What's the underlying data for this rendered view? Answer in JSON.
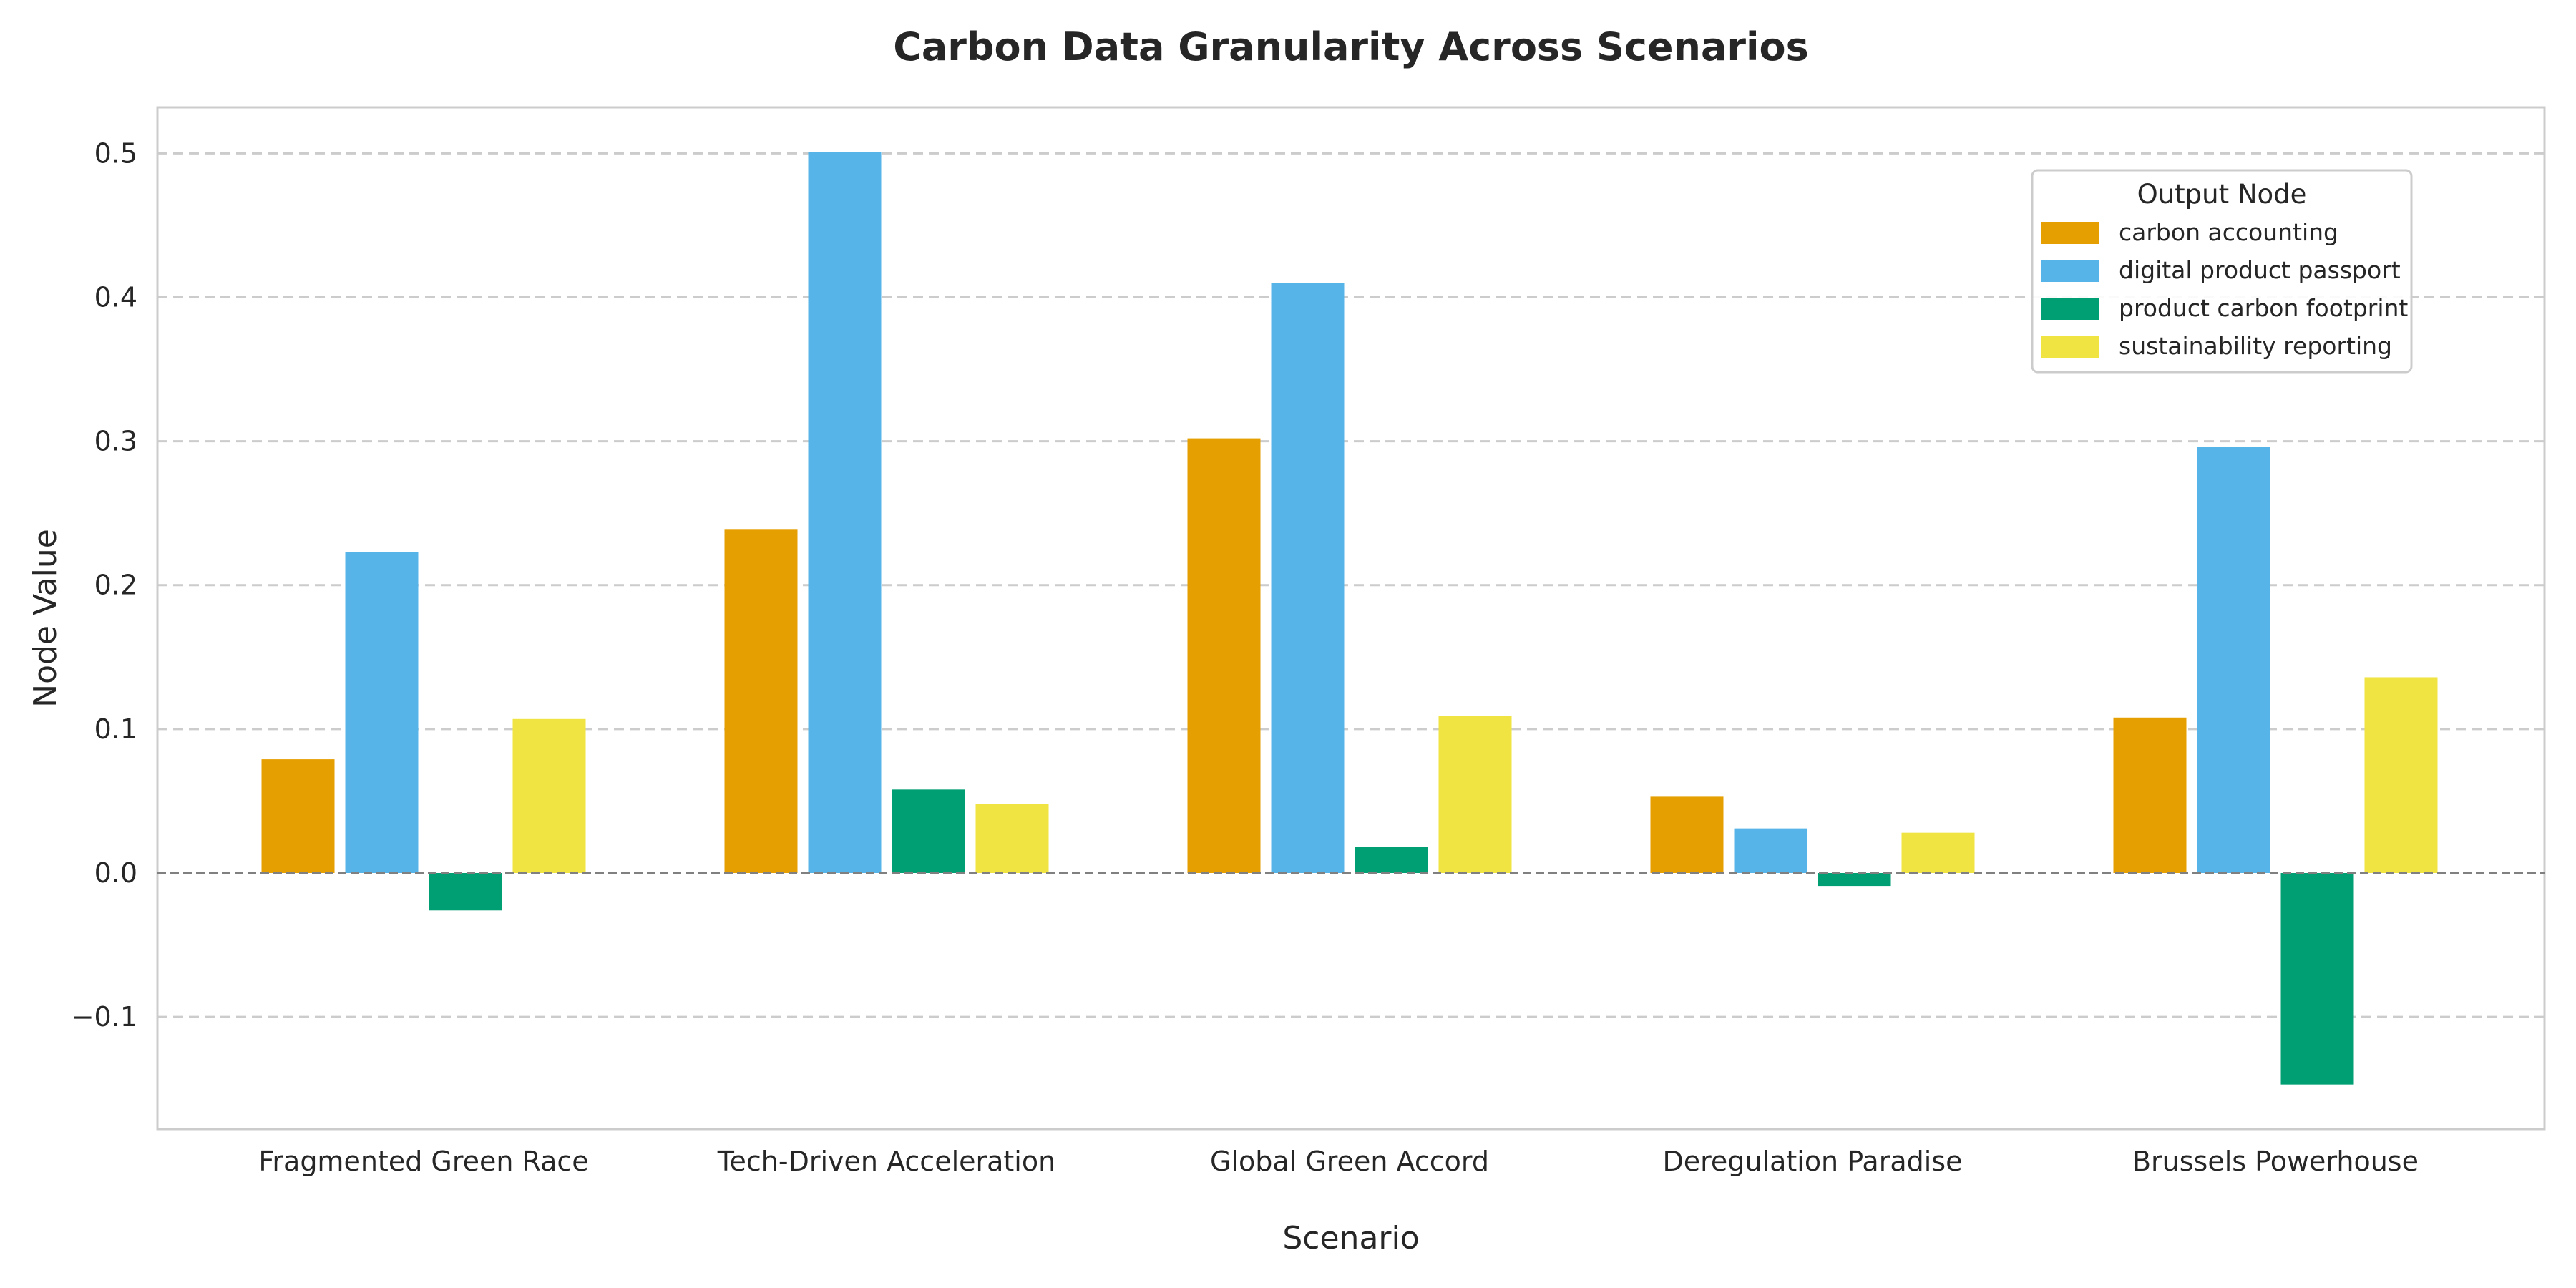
{
  "chart_data": {
    "type": "bar",
    "title": "Carbon Data Granularity Across Scenarios",
    "xlabel": "Scenario",
    "ylabel": "Node Value",
    "categories": [
      "Fragmented Green Race",
      "Tech-Driven Acceleration",
      "Global Green Accord",
      "Deregulation Paradise",
      "Brussels Powerhouse"
    ],
    "series": [
      {
        "name": "carbon accounting",
        "color": "#E69F00",
        "values": [
          0.079,
          0.239,
          0.302,
          0.053,
          0.108
        ]
      },
      {
        "name": "digital product passport",
        "color": "#56B4E9",
        "values": [
          0.223,
          0.501,
          0.41,
          0.031,
          0.296
        ]
      },
      {
        "name": "product carbon footprint",
        "color": "#009E73",
        "values": [
          -0.026,
          0.058,
          0.018,
          -0.009,
          -0.147
        ]
      },
      {
        "name": "sustainability reporting",
        "color": "#F0E442",
        "values": [
          0.107,
          0.048,
          0.109,
          0.028,
          0.136
        ]
      }
    ],
    "ylim": [
      -0.178,
      0.532
    ],
    "yticks": [
      -0.1,
      0.0,
      0.1,
      0.2,
      0.3,
      0.4,
      0.5
    ],
    "ytick_labels": [
      "−0.1",
      "0.0",
      "0.1",
      "0.2",
      "0.3",
      "0.4",
      "0.5"
    ],
    "grid": "horizontal-dashed",
    "zero_line": true,
    "legend": {
      "title": "Output Node",
      "placement": "top-right"
    }
  }
}
